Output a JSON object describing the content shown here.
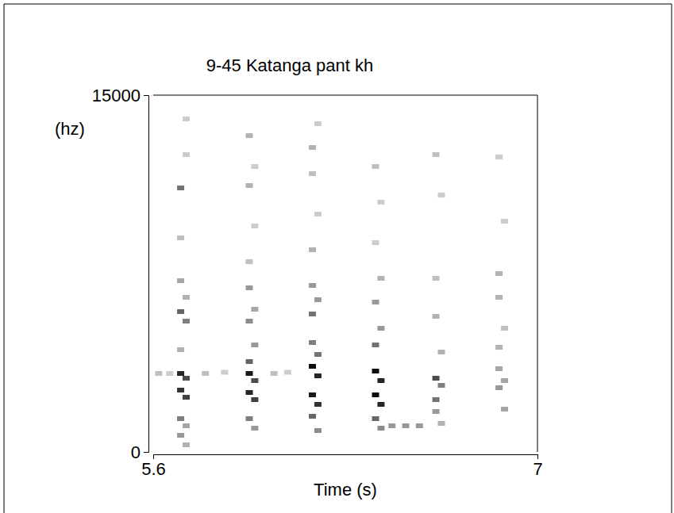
{
  "chart_data": {
    "type": "spectrogram",
    "title": "9-45 Katanga pant kh",
    "x_label": "Time (s)",
    "y_label": "(hz)",
    "xlim": [
      5.6,
      7
    ],
    "xticks": [
      5.6,
      7
    ],
    "ylim": [
      0,
      15000
    ],
    "yticks": [
      0,
      15000
    ],
    "zlim": [
      0,
      1
    ],
    "color": "#000000",
    "cells": [
      [
        5.62,
        3300,
        0.25
      ],
      [
        5.66,
        3300,
        0.2
      ],
      [
        5.79,
        3300,
        0.25
      ],
      [
        5.86,
        3350,
        0.2
      ],
      [
        6.04,
        3300,
        0.25
      ],
      [
        6.09,
        3350,
        0.2
      ],
      [
        5.7,
        11100,
        0.55
      ],
      [
        5.7,
        9000,
        0.25
      ],
      [
        5.7,
        7200,
        0.35
      ],
      [
        5.7,
        5900,
        0.6
      ],
      [
        5.7,
        4300,
        0.3
      ],
      [
        5.7,
        3300,
        0.85
      ],
      [
        5.7,
        2600,
        0.8
      ],
      [
        5.7,
        1400,
        0.5
      ],
      [
        5.7,
        700,
        0.4
      ],
      [
        5.72,
        14000,
        0.2
      ],
      [
        5.72,
        12500,
        0.2
      ],
      [
        5.72,
        6500,
        0.3
      ],
      [
        5.72,
        5500,
        0.5
      ],
      [
        5.72,
        3100,
        0.7
      ],
      [
        5.72,
        2300,
        0.75
      ],
      [
        5.72,
        1100,
        0.35
      ],
      [
        5.72,
        300,
        0.3
      ],
      [
        5.95,
        13300,
        0.3
      ],
      [
        5.95,
        11200,
        0.3
      ],
      [
        5.95,
        8000,
        0.25
      ],
      [
        5.95,
        6900,
        0.4
      ],
      [
        5.95,
        5500,
        0.45
      ],
      [
        5.95,
        3800,
        0.6
      ],
      [
        5.95,
        3300,
        0.9
      ],
      [
        5.95,
        2500,
        0.85
      ],
      [
        5.95,
        1400,
        0.5
      ],
      [
        5.97,
        12000,
        0.2
      ],
      [
        5.97,
        9500,
        0.2
      ],
      [
        5.97,
        6000,
        0.35
      ],
      [
        5.97,
        4500,
        0.4
      ],
      [
        5.97,
        3000,
        0.7
      ],
      [
        5.97,
        2200,
        0.75
      ],
      [
        5.97,
        1000,
        0.4
      ],
      [
        6.18,
        12800,
        0.3
      ],
      [
        6.18,
        11700,
        0.25
      ],
      [
        6.18,
        8500,
        0.3
      ],
      [
        6.18,
        7000,
        0.4
      ],
      [
        6.18,
        5800,
        0.55
      ],
      [
        6.18,
        4600,
        0.5
      ],
      [
        6.18,
        3600,
        0.95
      ],
      [
        6.18,
        2400,
        0.9
      ],
      [
        6.18,
        1500,
        0.6
      ],
      [
        6.2,
        13800,
        0.2
      ],
      [
        6.2,
        10000,
        0.2
      ],
      [
        6.2,
        6400,
        0.4
      ],
      [
        6.2,
        4100,
        0.55
      ],
      [
        6.2,
        3200,
        0.85
      ],
      [
        6.2,
        2000,
        0.8
      ],
      [
        6.2,
        900,
        0.45
      ],
      [
        6.41,
        12000,
        0.25
      ],
      [
        6.41,
        8800,
        0.2
      ],
      [
        6.41,
        6300,
        0.4
      ],
      [
        6.41,
        4500,
        0.55
      ],
      [
        6.41,
        3400,
        0.95
      ],
      [
        6.41,
        2400,
        0.95
      ],
      [
        6.41,
        1400,
        0.6
      ],
      [
        6.43,
        10500,
        0.2
      ],
      [
        6.43,
        7300,
        0.3
      ],
      [
        6.43,
        5200,
        0.4
      ],
      [
        6.43,
        3000,
        0.85
      ],
      [
        6.43,
        2000,
        0.85
      ],
      [
        6.43,
        1000,
        0.45
      ],
      [
        6.47,
        1100,
        0.4
      ],
      [
        6.52,
        1100,
        0.4
      ],
      [
        6.57,
        1100,
        0.4
      ],
      [
        6.63,
        12500,
        0.25
      ],
      [
        6.63,
        7300,
        0.25
      ],
      [
        6.63,
        5700,
        0.3
      ],
      [
        6.63,
        3100,
        0.7
      ],
      [
        6.63,
        2200,
        0.55
      ],
      [
        6.63,
        1700,
        0.4
      ],
      [
        6.65,
        10800,
        0.2
      ],
      [
        6.65,
        4200,
        0.3
      ],
      [
        6.65,
        2800,
        0.5
      ],
      [
        6.65,
        1200,
        0.3
      ],
      [
        6.86,
        12400,
        0.2
      ],
      [
        6.86,
        7500,
        0.3
      ],
      [
        6.86,
        6500,
        0.3
      ],
      [
        6.86,
        4400,
        0.3
      ],
      [
        6.86,
        3500,
        0.35
      ],
      [
        6.86,
        2700,
        0.4
      ],
      [
        6.88,
        9700,
        0.2
      ],
      [
        6.88,
        5200,
        0.25
      ],
      [
        6.88,
        3000,
        0.35
      ],
      [
        6.88,
        1800,
        0.35
      ]
    ]
  }
}
